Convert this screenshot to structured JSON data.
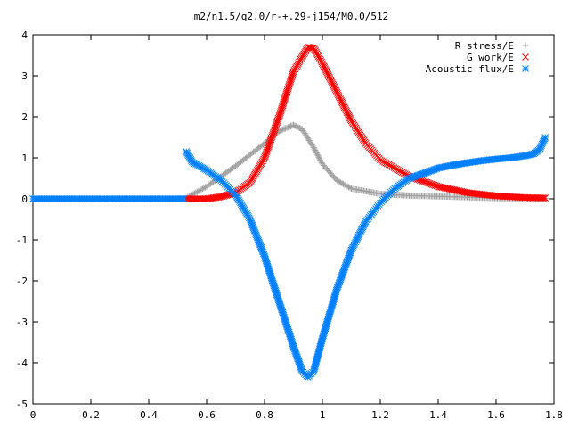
{
  "chart_data": {
    "type": "scatter",
    "title": "m2/n1.5/q2.0/r-+.29-j154/M0.0/512",
    "xlabel": "",
    "ylabel": "",
    "xlim": [
      0,
      1.8
    ],
    "ylim": [
      -5,
      4
    ],
    "x_ticks": [
      "0",
      "0.2",
      "0.4",
      "0.6",
      "0.8",
      "1",
      "1.2",
      "1.4",
      "1.6",
      "1.8"
    ],
    "y_ticks": [
      "4",
      "3",
      "2",
      "1",
      "0",
      "-1",
      "-2",
      "-3",
      "-4",
      "-5"
    ],
    "grid": false,
    "legend_position": "top-right",
    "series": [
      {
        "name": "R stress/E",
        "marker": "plus",
        "color": "#a0a0a0",
        "points": [
          [
            0.53,
            0.02
          ],
          [
            0.6,
            0.3
          ],
          [
            0.7,
            0.8
          ],
          [
            0.8,
            1.35
          ],
          [
            0.85,
            1.65
          ],
          [
            0.9,
            1.8
          ],
          [
            0.93,
            1.7
          ],
          [
            0.97,
            1.25
          ],
          [
            1.0,
            0.85
          ],
          [
            1.05,
            0.45
          ],
          [
            1.1,
            0.25
          ],
          [
            1.2,
            0.12
          ],
          [
            1.3,
            0.08
          ],
          [
            1.4,
            0.06
          ],
          [
            1.5,
            0.04
          ],
          [
            1.6,
            0.02
          ],
          [
            1.7,
            0.01
          ],
          [
            1.77,
            0.01
          ]
        ]
      },
      {
        "name": "G work/E",
        "marker": "cross",
        "color": "#ff0000",
        "points": [
          [
            0.53,
            0.0
          ],
          [
            0.6,
            0.0
          ],
          [
            0.65,
            0.05
          ],
          [
            0.7,
            0.15
          ],
          [
            0.75,
            0.4
          ],
          [
            0.8,
            1.0
          ],
          [
            0.85,
            2.0
          ],
          [
            0.9,
            3.1
          ],
          [
            0.95,
            3.7
          ],
          [
            0.97,
            3.68
          ],
          [
            1.0,
            3.3
          ],
          [
            1.05,
            2.6
          ],
          [
            1.1,
            1.9
          ],
          [
            1.15,
            1.35
          ],
          [
            1.2,
            0.95
          ],
          [
            1.3,
            0.55
          ],
          [
            1.4,
            0.3
          ],
          [
            1.5,
            0.15
          ],
          [
            1.6,
            0.07
          ],
          [
            1.7,
            0.03
          ],
          [
            1.77,
            0.02
          ]
        ]
      },
      {
        "name": "Acoustic flux/E",
        "marker": "star",
        "color": "#0080ff",
        "points": [
          [
            0.0,
            0.0
          ],
          [
            0.1,
            0.0
          ],
          [
            0.2,
            0.0
          ],
          [
            0.3,
            0.0
          ],
          [
            0.4,
            0.0
          ],
          [
            0.5,
            0.0
          ],
          [
            0.52,
            0.0
          ],
          [
            0.53,
            1.15
          ],
          [
            0.55,
            0.9
          ],
          [
            0.6,
            0.7
          ],
          [
            0.65,
            0.45
          ],
          [
            0.7,
            0.1
          ],
          [
            0.75,
            -0.5
          ],
          [
            0.8,
            -1.4
          ],
          [
            0.85,
            -2.5
          ],
          [
            0.9,
            -3.6
          ],
          [
            0.93,
            -4.2
          ],
          [
            0.95,
            -4.35
          ],
          [
            0.97,
            -4.2
          ],
          [
            1.0,
            -3.4
          ],
          [
            1.05,
            -2.2
          ],
          [
            1.1,
            -1.25
          ],
          [
            1.15,
            -0.55
          ],
          [
            1.2,
            -0.1
          ],
          [
            1.25,
            0.25
          ],
          [
            1.3,
            0.5
          ],
          [
            1.35,
            0.62
          ],
          [
            1.4,
            0.75
          ],
          [
            1.45,
            0.82
          ],
          [
            1.5,
            0.88
          ],
          [
            1.55,
            0.93
          ],
          [
            1.6,
            0.97
          ],
          [
            1.65,
            1.0
          ],
          [
            1.7,
            1.05
          ],
          [
            1.73,
            1.1
          ],
          [
            1.75,
            1.2
          ],
          [
            1.77,
            1.5
          ]
        ]
      }
    ]
  }
}
